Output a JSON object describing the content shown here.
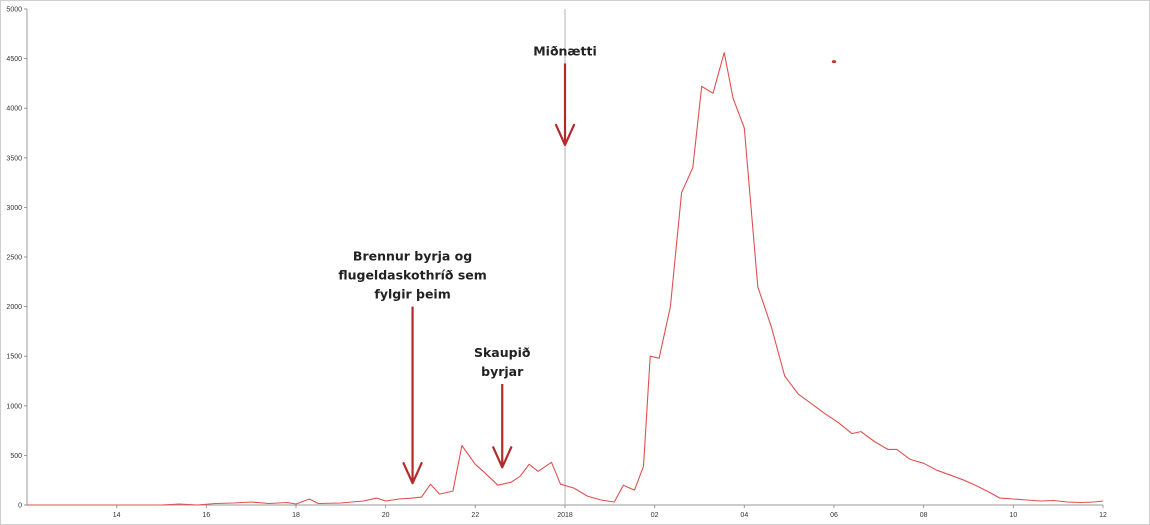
{
  "chart_data": {
    "type": "line",
    "title": "",
    "xlabel": "",
    "ylabel": "",
    "x_unit": "hours",
    "xlim": [
      12,
      36
    ],
    "ylim": [
      0,
      5000
    ],
    "grid": false,
    "y_ticks": [
      0,
      500,
      1000,
      1500,
      2000,
      2500,
      3000,
      3500,
      4000,
      4500,
      5000
    ],
    "x_ticks": [
      {
        "x": 14,
        "label": "14"
      },
      {
        "x": 16,
        "label": "16"
      },
      {
        "x": 18,
        "label": "18"
      },
      {
        "x": 20,
        "label": "20"
      },
      {
        "x": 22,
        "label": "22"
      },
      {
        "x": 24,
        "label": "2018"
      },
      {
        "x": 26,
        "label": "02"
      },
      {
        "x": 28,
        "label": "04"
      },
      {
        "x": 30,
        "label": "06"
      },
      {
        "x": 32,
        "label": "08"
      },
      {
        "x": 34,
        "label": "10"
      },
      {
        "x": 36,
        "label": "12"
      }
    ],
    "series": [
      {
        "name": "",
        "color": "#e05050",
        "points": [
          [
            12.0,
            0
          ],
          [
            13.5,
            0
          ],
          [
            15.0,
            0
          ],
          [
            15.4,
            10
          ],
          [
            15.8,
            0
          ],
          [
            16.2,
            15
          ],
          [
            16.6,
            20
          ],
          [
            17.0,
            30
          ],
          [
            17.4,
            15
          ],
          [
            17.8,
            25
          ],
          [
            18.0,
            10
          ],
          [
            18.3,
            60
          ],
          [
            18.5,
            15
          ],
          [
            19.0,
            20
          ],
          [
            19.5,
            40
          ],
          [
            19.8,
            70
          ],
          [
            20.0,
            40
          ],
          [
            20.3,
            60
          ],
          [
            20.6,
            70
          ],
          [
            20.8,
            80
          ],
          [
            21.0,
            210
          ],
          [
            21.2,
            110
          ],
          [
            21.5,
            140
          ],
          [
            21.7,
            600
          ],
          [
            22.0,
            410
          ],
          [
            22.2,
            330
          ],
          [
            22.5,
            200
          ],
          [
            22.8,
            230
          ],
          [
            23.0,
            290
          ],
          [
            23.2,
            410
          ],
          [
            23.4,
            340
          ],
          [
            23.7,
            430
          ],
          [
            23.9,
            210
          ],
          [
            24.2,
            170
          ],
          [
            24.5,
            90
          ],
          [
            24.8,
            50
          ],
          [
            25.1,
            30
          ],
          [
            25.3,
            200
          ],
          [
            25.55,
            150
          ],
          [
            25.75,
            390
          ],
          [
            25.9,
            1500
          ],
          [
            26.1,
            1480
          ],
          [
            26.35,
            2000
          ],
          [
            26.6,
            3150
          ],
          [
            26.85,
            3400
          ],
          [
            27.05,
            4220
          ],
          [
            27.3,
            4150
          ],
          [
            27.55,
            4560
          ],
          [
            27.75,
            4100
          ],
          [
            28.0,
            3800
          ],
          [
            28.3,
            2200
          ],
          [
            28.6,
            1800
          ],
          [
            28.9,
            1300
          ],
          [
            29.2,
            1120
          ],
          [
            29.5,
            1020
          ],
          [
            29.8,
            920
          ],
          [
            30.1,
            830
          ],
          [
            30.4,
            720
          ],
          [
            30.6,
            740
          ],
          [
            30.9,
            640
          ],
          [
            31.2,
            560
          ],
          [
            31.4,
            560
          ],
          [
            31.7,
            460
          ],
          [
            32.0,
            420
          ],
          [
            32.3,
            350
          ],
          [
            32.6,
            300
          ],
          [
            32.9,
            250
          ],
          [
            33.2,
            190
          ],
          [
            33.5,
            120
          ],
          [
            33.7,
            70
          ],
          [
            34.0,
            60
          ],
          [
            34.3,
            50
          ],
          [
            34.6,
            40
          ],
          [
            34.9,
            45
          ],
          [
            35.2,
            30
          ],
          [
            35.5,
            25
          ],
          [
            35.8,
            30
          ],
          [
            36.0,
            40
          ]
        ]
      }
    ],
    "reference_lines": [
      {
        "axis": "x",
        "x": 24,
        "color": "#b0b0b0"
      }
    ],
    "annotations": [
      {
        "lines": [
          "Miðnætti"
        ],
        "arrow_x": 24.0,
        "arrow_from_y": 4450,
        "arrow_to_y": 3630
      },
      {
        "lines": [
          "Brennur byrja og",
          "flugeldaskothríð sem",
          "fylgir þeim"
        ],
        "arrow_x": 20.6,
        "arrow_from_y": 2000,
        "arrow_to_y": 220
      },
      {
        "lines": [
          "Skaupið",
          "byrjar"
        ],
        "arrow_x": 22.6,
        "arrow_from_y": 1220,
        "arrow_to_y": 380
      }
    ],
    "markers": [
      {
        "x": 30.0,
        "y": 4470,
        "color": "#d03030"
      }
    ]
  }
}
